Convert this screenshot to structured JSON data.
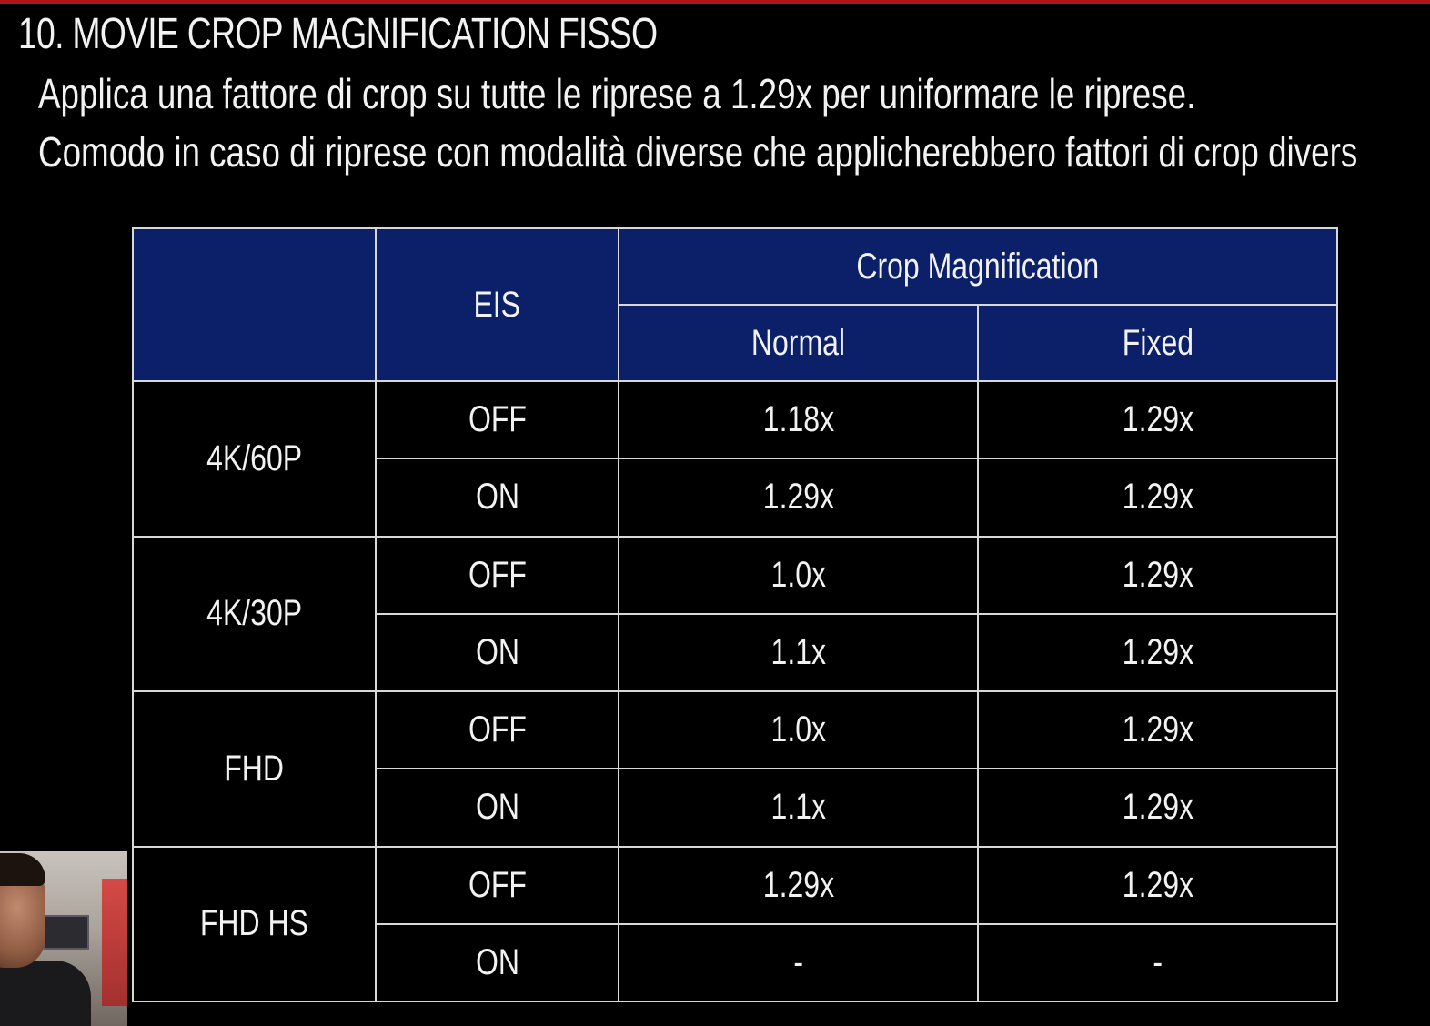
{
  "slide": {
    "title": "10. MOVIE CROP MAGNIFICATION FISSO",
    "description_lines": [
      "Applica una fattore di crop su tutte le riprese a 1.29x per uniformare le riprese.",
      "Comodo in caso di riprese con modalità diverse che applicherebbero fattori di crop divers"
    ]
  },
  "table": {
    "header": {
      "blank": "",
      "eis": "EIS",
      "group": "Crop Magnification",
      "normal": "Normal",
      "fixed": "Fixed"
    },
    "groups": [
      {
        "mode": "4K/60P",
        "rows": [
          {
            "eis": "OFF",
            "normal": "1.18x",
            "fixed": "1.29x"
          },
          {
            "eis": "ON",
            "normal": "1.29x",
            "fixed": "1.29x"
          }
        ]
      },
      {
        "mode": "4K/30P",
        "rows": [
          {
            "eis": "OFF",
            "normal": "1.0x",
            "fixed": "1.29x"
          },
          {
            "eis": "ON",
            "normal": "1.1x",
            "fixed": "1.29x"
          }
        ]
      },
      {
        "mode": "FHD",
        "rows": [
          {
            "eis": "OFF",
            "normal": "1.0x",
            "fixed": "1.29x"
          },
          {
            "eis": "ON",
            "normal": "1.1x",
            "fixed": "1.29x"
          }
        ]
      },
      {
        "mode": "FHD HS",
        "rows": [
          {
            "eis": "OFF",
            "normal": "1.29x",
            "fixed": "1.29x"
          },
          {
            "eis": "ON",
            "normal": "-",
            "fixed": "-"
          }
        ]
      }
    ]
  },
  "colors": {
    "header_bg": "#0b2068",
    "accent_bar": "#b01418",
    "background": "#000000"
  }
}
